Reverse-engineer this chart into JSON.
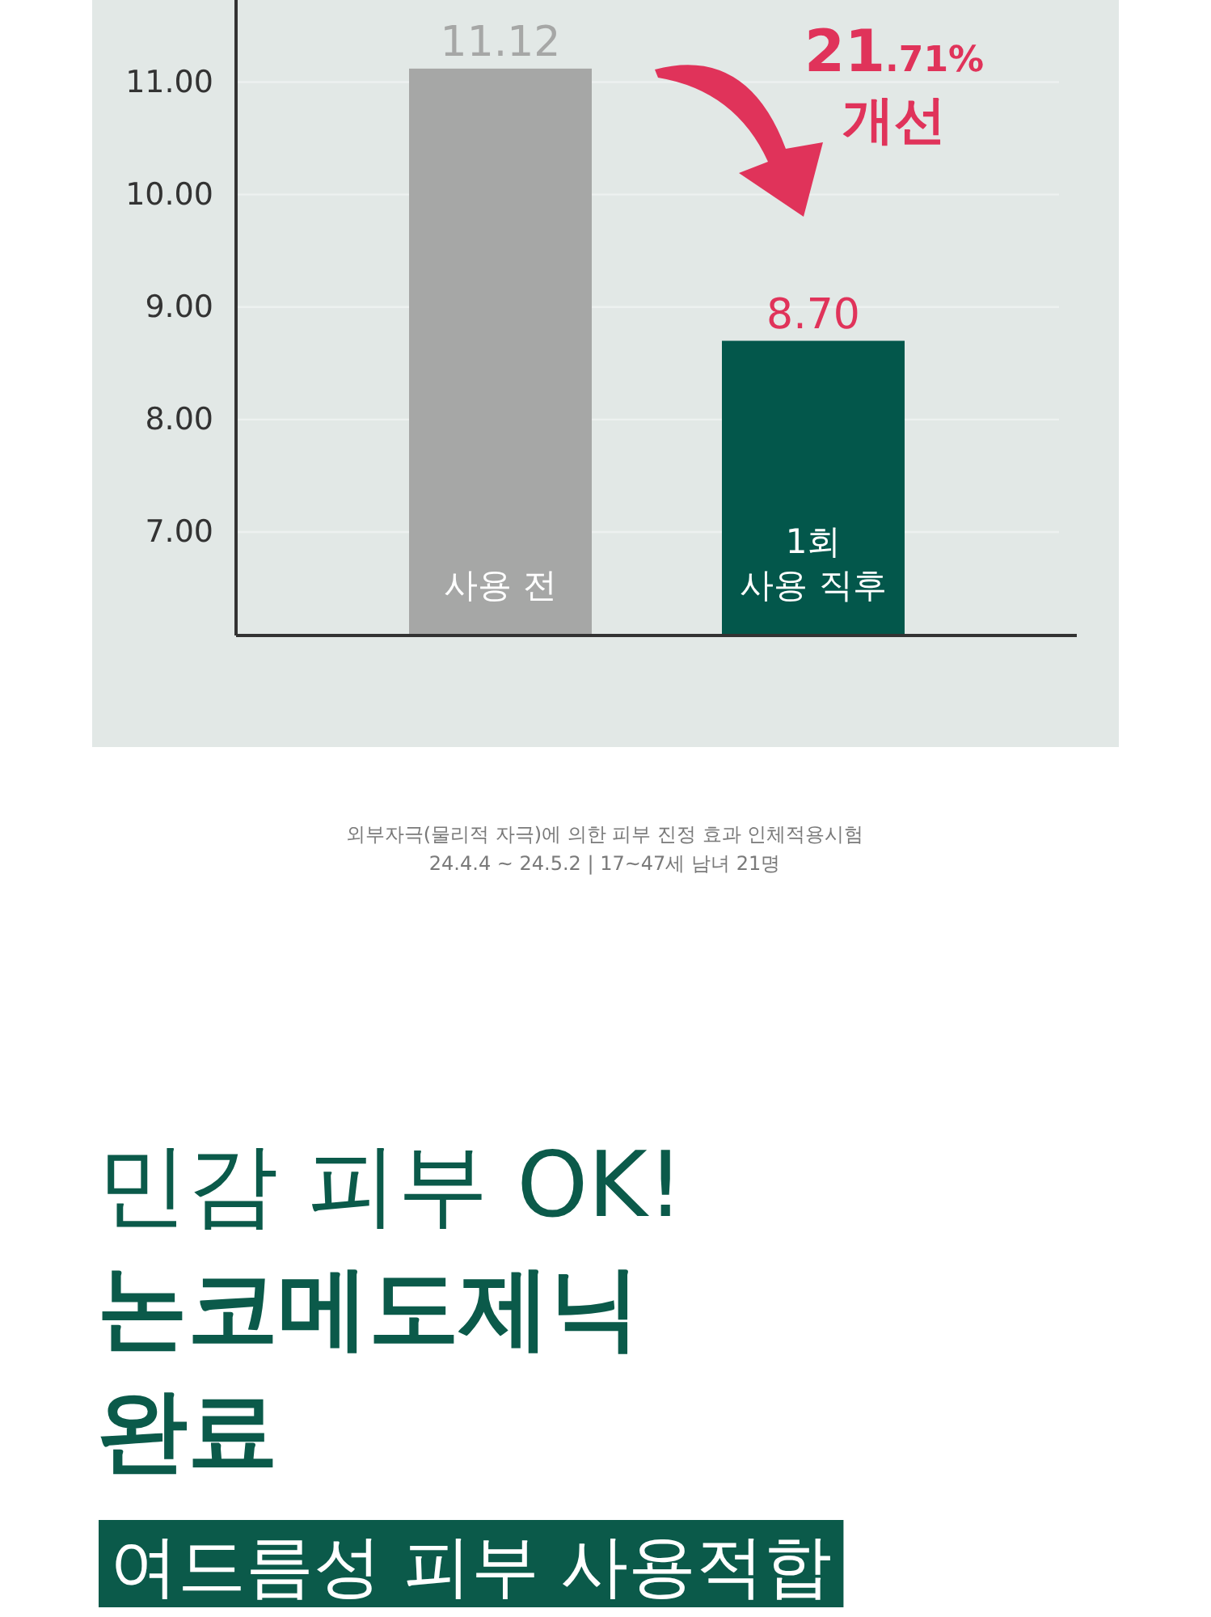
{
  "chart_data": {
    "type": "bar",
    "title": "민감 피부 OK!\n논코메도제닉\n완료",
    "subtitle": "여드름성 피부 사용적합",
    "categories": [
      "사용 전",
      "1회\n사용 직후"
    ],
    "values": [
      11.12,
      8.7
    ],
    "colors": [
      "#a6a7a6",
      "#03574b"
    ],
    "value_labels": [
      "11.12",
      "8.70"
    ],
    "ylim": [
      6.08,
      11.73
    ],
    "yticks": [
      {
        "value": 7,
        "label": "7.00"
      },
      {
        "value": 8,
        "label": "8.00"
      },
      {
        "value": 9,
        "label": "9.00"
      },
      {
        "value": 10,
        "label": "10.00"
      },
      {
        "value": 11,
        "label": "11.00"
      }
    ],
    "grid": "y",
    "annotations": [
      "21.71%\n개선",
      "외부자극(물리적 자극)에 의한 피부 진정 효과 인체적용시험",
      "24.4.4 ~ 24.5.2 | 17~47세 남녀 21명"
    ]
  }
}
